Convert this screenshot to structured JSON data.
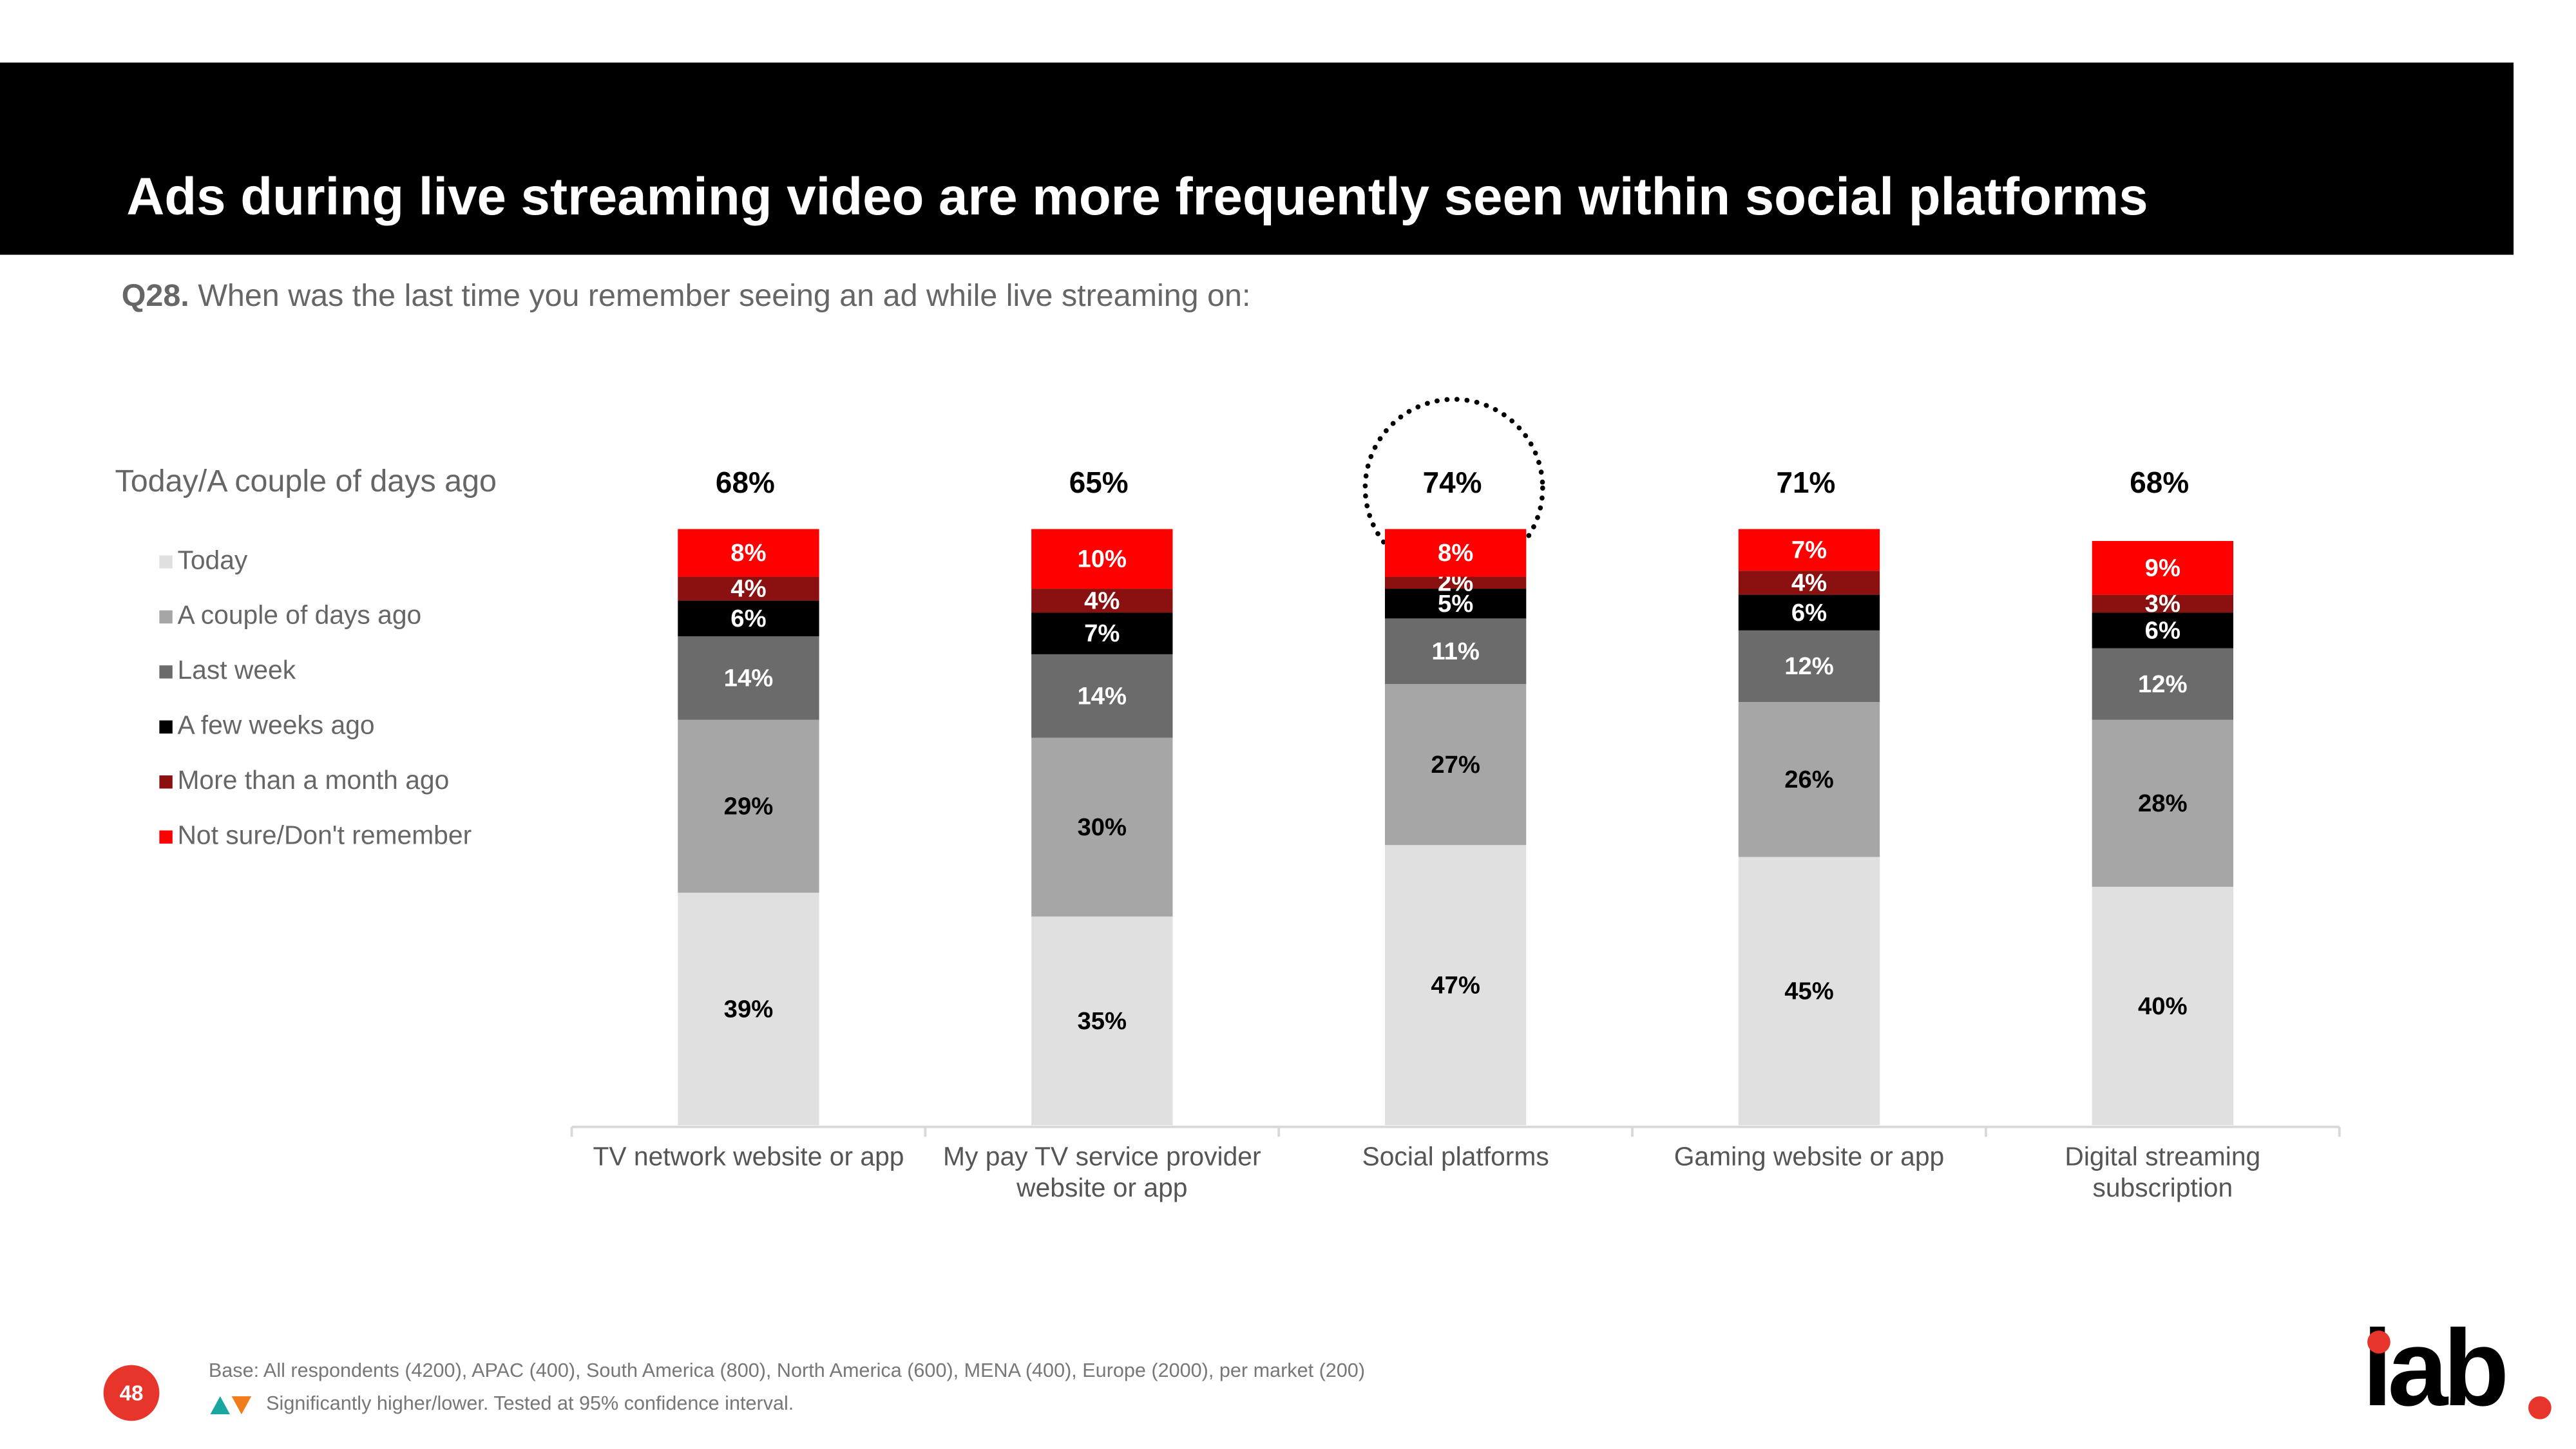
{
  "chart_data": {
    "type": "stacked_bar",
    "title": "Ads during live streaming video are more frequently seen within social platforms",
    "subtitle": {
      "label": "Q28.",
      "text": "When was the last time you remember seeing an ad while live streaming on:"
    },
    "annotation": "Today/A couple of days ago",
    "categories": [
      "TV network website or app",
      "My pay TV service provider website or app",
      "Social platforms",
      "Gaming website or app",
      "Digital streaming subscription"
    ],
    "series": [
      {
        "name": "Today",
        "color": "#e0e0e0",
        "values": [
          39,
          35,
          47,
          45,
          40
        ],
        "value_labels": [
          "39%",
          "35%",
          "47%",
          "45%",
          "40%"
        ]
      },
      {
        "name": "A couple of days ago",
        "color": "#a6a6a6",
        "values": [
          29,
          30,
          27,
          26,
          28
        ],
        "value_labels": [
          "29%",
          "30%",
          "27%",
          "26%",
          "28%"
        ]
      },
      {
        "name": "Last week",
        "color": "#6b6b6b",
        "values": [
          14,
          14,
          11,
          12,
          12
        ],
        "value_labels": [
          "14%",
          "14%",
          "11%",
          "12%",
          "12%"
        ]
      },
      {
        "name": "A few weeks ago",
        "color": "#000000",
        "values": [
          6,
          7,
          5,
          6,
          6
        ],
        "value_labels": [
          "6%",
          "7%",
          "5%",
          "6%",
          "6%"
        ]
      },
      {
        "name": "More than a month ago",
        "color": "#8b1010",
        "values": [
          4,
          4,
          2,
          4,
          3
        ],
        "value_labels": [
          "4%",
          "4%",
          "2%",
          "4%",
          "3%"
        ]
      },
      {
        "name": "Not sure/Don't remember",
        "color": "#ff0000",
        "values": [
          8,
          10,
          8,
          7,
          9
        ],
        "value_labels": [
          "8%",
          "10%",
          "8%",
          "7%",
          "9%"
        ]
      }
    ],
    "totals": {
      "values": [
        68,
        65,
        74,
        71,
        68
      ],
      "value_labels": [
        "68%",
        "65%",
        "74%",
        "71%",
        "68%"
      ]
    }
  },
  "footer": {
    "base": "Base: All respondents (4200), APAC (400), South America (800), North America (600), MENA (400), Europe (2000), per market (200)",
    "significance": "Significantly higher/lower. Tested at 95% confidence interval.",
    "page_number": "48",
    "logo": "iab"
  }
}
